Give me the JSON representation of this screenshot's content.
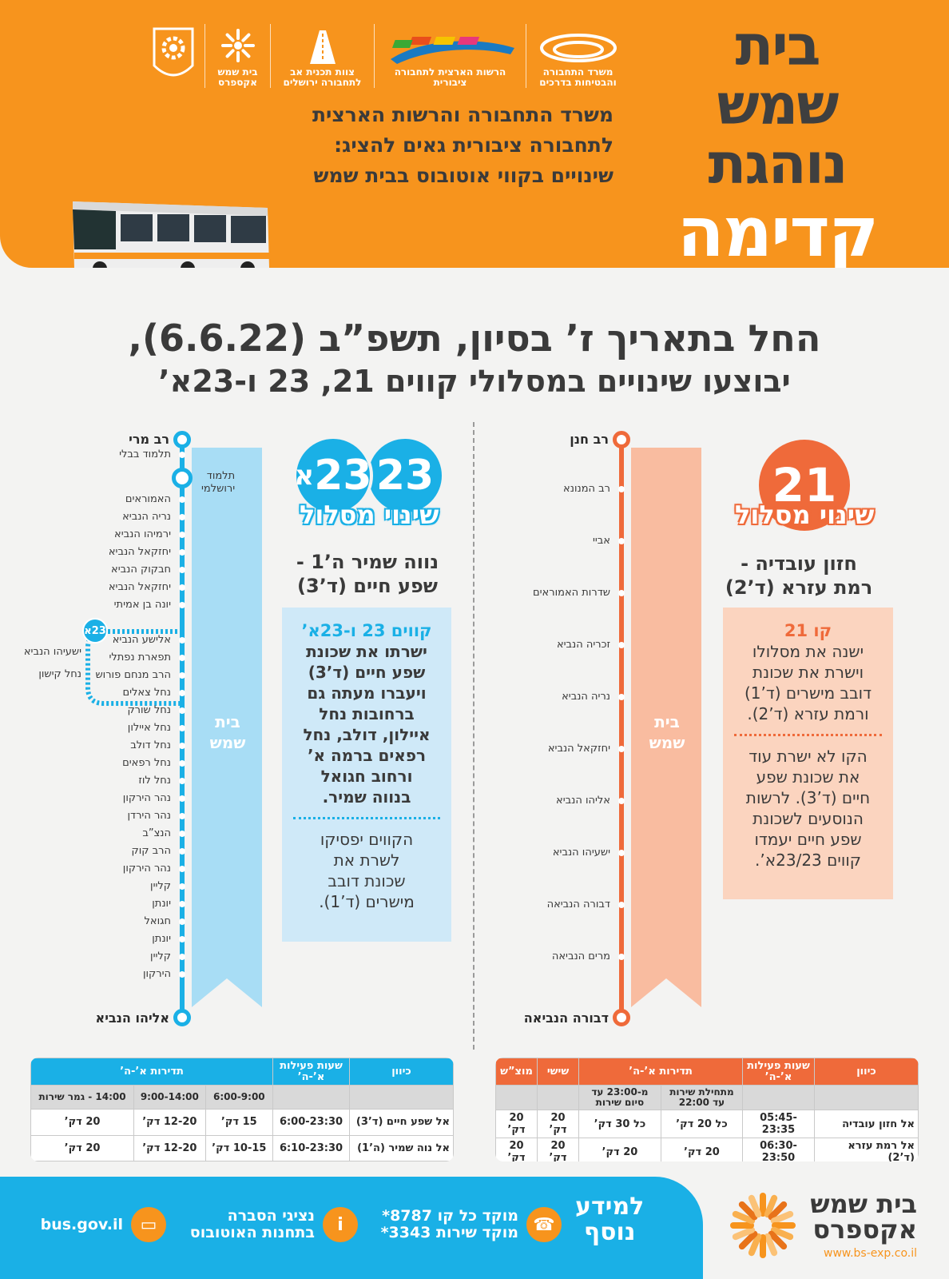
{
  "header": {
    "title_lines": [
      "בית",
      "שמש",
      "נוהגת",
      "קדימה"
    ],
    "logos": [
      {
        "label": "משרד התחבורה והבטיחות בדרכים",
        "icon": "ministry-transport-logo"
      },
      {
        "label": "הרשות הארצית לתחבורה ציבורית",
        "icon": "public-transport-authority-logo"
      },
      {
        "label": "צוות תכנית אב לתחבורה ירושלים",
        "icon": "jerusalem-transport-masterplan-logo"
      },
      {
        "label": "בית שמש אקספרס",
        "icon": "bs-express-logo"
      },
      {
        "label": "עיריית בית-שמש",
        "icon": "municipality-emblem"
      }
    ],
    "intro_lines": [
      "משרד התחבורה והרשות הארצית",
      "לתחבורה ציבורית גאים להציג:",
      "שינויים בקווי אוטובוס בבית שמש"
    ]
  },
  "heading": {
    "line1": "החל בתאריך ז’ בסיון, תשפ”ב (6.6.22),",
    "line2": "יבוצעו שינויים במסלולי קווים 21, 23 ו-23א’"
  },
  "route21": {
    "badge": "21",
    "subtitle": "שינוי מסלול",
    "dest_lines": [
      "חזון עובדיה -",
      "רמת עזרא (ד’2)"
    ],
    "city_label": [
      "בית",
      "שמש"
    ],
    "start": "רב חנן",
    "end": "דבורה הנביאה",
    "stops": [
      "רב המנונא",
      "אביי",
      "שדרות האמוראים",
      "זכריה הנביא",
      "נריה הנביא",
      "יחזקאל הנביא",
      "אליהו הנביא",
      "ישעיהו הנביא",
      "דבורה הנביאה",
      "מרים הנביאה"
    ],
    "info_title": "קו 21",
    "info_lines1": [
      "ישנה את מסלולו",
      "וישרת את שכונת",
      "דובב מישרים (ד’1)",
      "ורמת עזרא (ד’2)."
    ],
    "info_lines2": [
      "הקו לא ישרת עוד",
      "את שכונת שפע",
      "חיים (ד’3). לרשות",
      "הנוסעים לשכונת",
      "שפע חיים יעמדו",
      "קווים 23/23א’."
    ],
    "color": "#ef6a3a"
  },
  "route23": {
    "badge_a": "23",
    "badge_b": "23",
    "badge_b_suffix": "א",
    "subtitle": "שינוי מסלול",
    "dest_lines": [
      "נווה שמיר ה’1 -",
      "שפע חיים (ד’3)"
    ],
    "city_label": [
      "בית",
      "שמש"
    ],
    "start": "רב מרי",
    "end": "אליהו הנביא",
    "hub": [
      "תלמוד",
      "ירושלמי"
    ],
    "stops_top": [
      "תלמוד בבלי"
    ],
    "stops": [
      "האמוראים",
      "נריה הנביא",
      "ירמיהו הנביא",
      "יחזקאל הנביא",
      "חבקוק הנביא",
      "יחזקאל הנביא",
      "יונה בן אמיתי",
      "אלישע הנביא",
      "תפארת נפתלי",
      "הרב מנחם פורוש",
      "נחל צאלים",
      "נחל שורק",
      "נחל איילון",
      "נחל דולב",
      "נחל רפאים",
      "נחל לוז",
      "נהר הירקון",
      "נהר הירדן",
      "הנצ”ב",
      "הרב קוק",
      "נהר הירקון",
      "קליין",
      "יונתן",
      "חגואל",
      "יונתן",
      "קליין",
      "הירקון"
    ],
    "branch_badge": "23א",
    "branch_stops": [
      "ישעיהו הנביא",
      "נחל קישון"
    ],
    "info_title": "קווים 23 ו-23א’",
    "info_lines1": [
      "ישרתו את שכונת",
      "שפע חיים (ד’3)",
      "ויעברו מעתה גם",
      "ברחובות נחל",
      "איילון, דולב, נחל",
      "רפאים ברמה א’",
      "ורחוב חגואל",
      "בנווה שמיר."
    ],
    "info_lines2": [
      "הקווים יפסיקו",
      "לשרת את",
      "שכונת דובב",
      "מישרים (ד’1)."
    ],
    "color": "#1ab0e6"
  },
  "table21": {
    "headers": [
      "כיוון",
      "שעות פעילות א’-ה’",
      "תדירות א’-ה’",
      "שישי",
      "מוצ”ש"
    ],
    "subheaders": [
      "",
      "",
      "מתחילת שירות עד 22:00",
      "מ-23:00 עד סיום שירות",
      "",
      ""
    ],
    "rows": [
      [
        "אל חזון עובדיה",
        "05:45-23:35",
        "כל 20 דק’",
        "כל 30 דק’",
        "20 דק’",
        "20 דק’"
      ],
      [
        "אל רמת עזרא (ד’2)",
        "06:30-23:50",
        "20 דק’",
        "20 דק’",
        "20 דק’",
        "20 דק’"
      ]
    ]
  },
  "table23": {
    "headers": [
      "כיוון",
      "שעות פעילות א’-ה’",
      "תדירות א’-ה’"
    ],
    "subheaders": [
      "",
      "",
      "6:00-9:00",
      "9:00-14:00",
      "14:00 - גמר שירות"
    ],
    "rows": [
      [
        "אל שפע חיים (ד’3)",
        "6:00-23:30",
        "15 דק’",
        "12-20 דק’",
        "20 דק’"
      ],
      [
        "אל נוה שמיר (ה’1)",
        "6:10-23:30",
        "10-15 דק’",
        "12-20 דק’",
        "20 דק’"
      ]
    ]
  },
  "footer": {
    "more": [
      "למידע",
      "נוסף"
    ],
    "hotline": [
      "מוקד כל קו 8787*",
      "מוקד שירות 3343*"
    ],
    "reps": [
      "נציגי הסברה",
      "בתחנות האוטובוס"
    ],
    "site": "bus.gov.il",
    "brand": [
      "בית שמש",
      "אקספרס"
    ],
    "brand_url": "www.bs-exp.co.il"
  }
}
